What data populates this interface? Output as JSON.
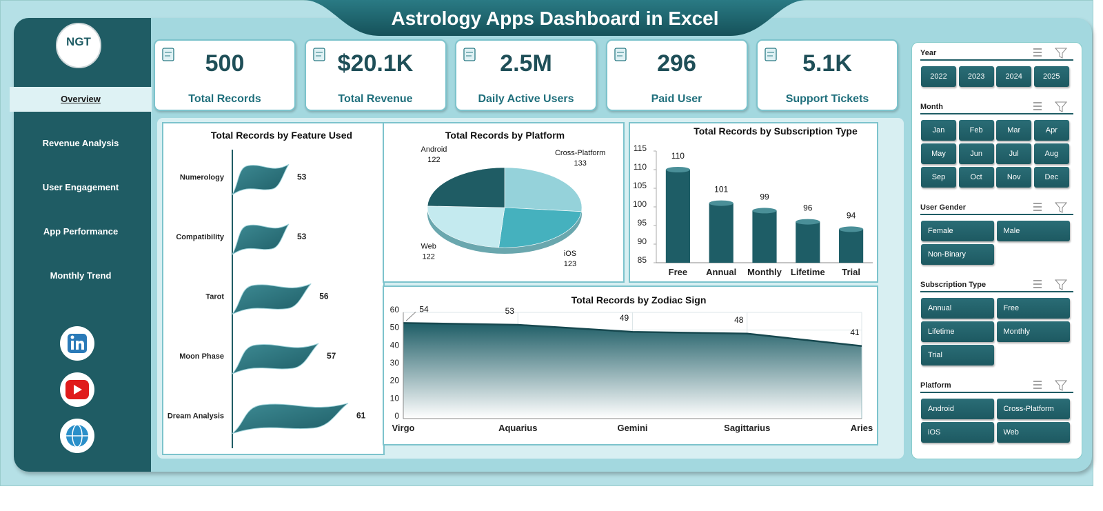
{
  "header": {
    "title": "Astrology Apps Dashboard in Excel"
  },
  "logo": {
    "text": "NGT"
  },
  "nav": [
    "Overview",
    "Revenue Analysis",
    "User Engagement",
    "App Performance",
    "Monthly Trend"
  ],
  "kpis": [
    {
      "value": "500",
      "label": "Total Records"
    },
    {
      "value": "$20.1K",
      "label": "Total Revenue"
    },
    {
      "value": "2.5M",
      "label": "Daily Active Users"
    },
    {
      "value": "296",
      "label": "Paid User"
    },
    {
      "value": "5.1K",
      "label": "Support Tickets"
    }
  ],
  "slicers": [
    {
      "title": "Year",
      "items": [
        "2022",
        "2023",
        "2024",
        "2025"
      ]
    },
    {
      "title": "Month",
      "items": [
        "Jan",
        "Feb",
        "Mar",
        "Apr",
        "May",
        "Jun",
        "Jul",
        "Aug",
        "Sep",
        "Oct",
        "Nov",
        "Dec"
      ]
    },
    {
      "title": "User Gender",
      "items": [
        "Female",
        "Male",
        "Non-Binary"
      ]
    },
    {
      "title": "Subscription Type",
      "items": [
        "Annual",
        "Free",
        "Lifetime",
        "Monthly",
        "Trial"
      ]
    },
    {
      "title": "Platform",
      "items": [
        "Android",
        "Cross-Platform",
        "iOS",
        "Web"
      ]
    }
  ],
  "chart_data": [
    {
      "type": "bar",
      "orientation": "horizontal",
      "title": "Total Records by Feature Used",
      "categories": [
        "Numerology",
        "Compatibility",
        "Tarot",
        "Moon Phase",
        "Dream Analysis"
      ],
      "values": [
        53,
        53,
        56,
        57,
        61
      ],
      "color": "#1e5d66"
    },
    {
      "type": "pie",
      "title": "Total Records by Platform",
      "categories": [
        "Cross-Platform",
        "iOS",
        "Web",
        "Android"
      ],
      "values": [
        133,
        123,
        122,
        122
      ],
      "colors": [
        "#95d2da",
        "#45b1be",
        "#c4eaef",
        "#1f5c64"
      ]
    },
    {
      "type": "bar",
      "title": "Total Records by Subscription Type",
      "categories": [
        "Free",
        "Annual",
        "Monthly",
        "Lifetime",
        "Trial"
      ],
      "values": [
        110,
        101,
        99,
        96,
        94
      ],
      "color": "#1e5d66",
      "ylim": [
        85,
        115
      ],
      "yticks": [
        85,
        90,
        95,
        100,
        105,
        110,
        115
      ]
    },
    {
      "type": "area",
      "title": "Total Records by Zodiac Sign",
      "categories": [
        "Virgo",
        "Aquarius",
        "Gemini",
        "Sagittarius",
        "Aries"
      ],
      "values": [
        54,
        53,
        49,
        48,
        41
      ],
      "color": "#1e5d66",
      "ylim": [
        0,
        60
      ],
      "yticks": [
        0,
        10,
        20,
        30,
        40,
        50,
        60
      ],
      "grid": true
    }
  ]
}
